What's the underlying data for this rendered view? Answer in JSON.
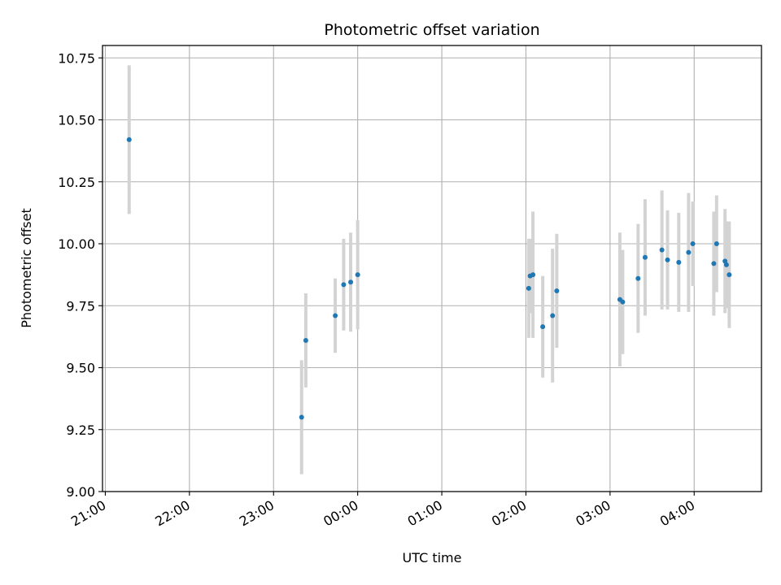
{
  "chart_data": {
    "type": "scatter",
    "title": "Photometric offset variation",
    "xlabel": "UTC time",
    "ylabel": "Photometric offset",
    "x_is_time": true,
    "xlim": [
      "20:58",
      "04:48"
    ],
    "ylim": [
      9.0,
      10.8
    ],
    "xticks": [
      "21:00",
      "22:00",
      "23:00",
      "00:00",
      "01:00",
      "02:00",
      "03:00",
      "04:00"
    ],
    "yticks": [
      "9.00",
      "9.25",
      "9.50",
      "9.75",
      "10.00",
      "10.25",
      "10.50",
      "10.75"
    ],
    "grid": true,
    "marker_color": "#1f77b4",
    "errorbar_color": "#d3d3d3",
    "series": [
      {
        "points": [
          {
            "x": "21:17",
            "y": 10.42,
            "err": 0.3
          },
          {
            "x": "23:20",
            "y": 9.3,
            "err": 0.23
          },
          {
            "x": "23:23",
            "y": 9.61,
            "err": 0.19
          },
          {
            "x": "23:44",
            "y": 9.71,
            "err": 0.15
          },
          {
            "x": "23:50",
            "y": 9.835,
            "err": 0.185
          },
          {
            "x": "23:55",
            "y": 9.845,
            "err": 0.2
          },
          {
            "x": "00:00",
            "y": 9.875,
            "err": 0.22
          },
          {
            "x": "02:02",
            "y": 9.82,
            "err": 0.2
          },
          {
            "x": "02:03",
            "y": 9.87,
            "err": 0.15
          },
          {
            "x": "02:05",
            "y": 9.875,
            "err": 0.255
          },
          {
            "x": "02:12",
            "y": 9.665,
            "err": 0.205
          },
          {
            "x": "02:19",
            "y": 9.71,
            "err": 0.27
          },
          {
            "x": "02:22",
            "y": 9.81,
            "err": 0.23
          },
          {
            "x": "03:07",
            "y": 9.775,
            "err": 0.27
          },
          {
            "x": "03:09",
            "y": 9.765,
            "err": 0.21
          },
          {
            "x": "03:20",
            "y": 9.86,
            "err": 0.22
          },
          {
            "x": "03:25",
            "y": 9.945,
            "err": 0.235
          },
          {
            "x": "03:37",
            "y": 9.975,
            "err": 0.24
          },
          {
            "x": "03:41",
            "y": 9.935,
            "err": 0.2
          },
          {
            "x": "03:49",
            "y": 9.925,
            "err": 0.2
          },
          {
            "x": "03:56",
            "y": 9.965,
            "err": 0.24
          },
          {
            "x": "03:59",
            "y": 10.0,
            "err": 0.17
          },
          {
            "x": "04:14",
            "y": 9.92,
            "err": 0.21
          },
          {
            "x": "04:16",
            "y": 10.0,
            "err": 0.195
          },
          {
            "x": "04:22",
            "y": 9.93,
            "err": 0.21
          },
          {
            "x": "04:23",
            "y": 9.915,
            "err": 0.175
          },
          {
            "x": "04:25",
            "y": 9.875,
            "err": 0.215
          }
        ]
      }
    ]
  }
}
